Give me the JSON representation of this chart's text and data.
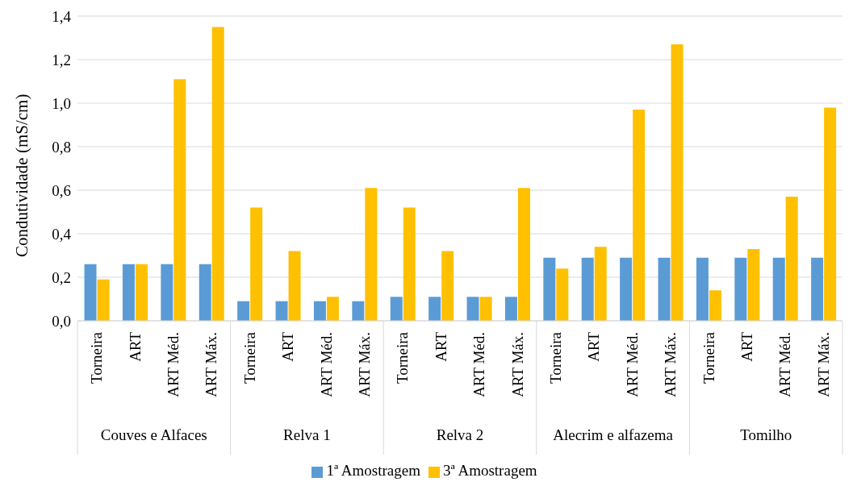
{
  "chart_data": {
    "type": "bar",
    "ylabel": "Condutividade (mS/cm)",
    "categories": [
      "Torneira",
      "ART",
      "ART Méd.",
      "ART Máx.",
      "Torneira",
      "ART",
      "ART Méd.",
      "ART Máx.",
      "Torneira",
      "ART",
      "ART Méd.",
      "ART Máx.",
      "Torneira",
      "ART",
      "ART Méd.",
      "ART Máx.",
      "Torneira",
      "ART",
      "ART Méd.",
      "ART Máx."
    ],
    "annotations": [
      "Couves e Alfaces",
      "Relva 1",
      "Relva 2",
      "Alecrim e alfazema",
      "Tomilho"
    ],
    "series": [
      {
        "name": "1ª Amostragem",
        "color": "#5b9bd5",
        "values": [
          0.26,
          0.26,
          0.26,
          0.26,
          0.09,
          0.09,
          0.09,
          0.09,
          0.11,
          0.11,
          0.11,
          0.11,
          0.29,
          0.29,
          0.29,
          0.29,
          0.29,
          0.29,
          0.29,
          0.29
        ]
      },
      {
        "name": "3ª Amostragem",
        "color": "#ffc000",
        "values": [
          0.19,
          0.26,
          1.11,
          1.35,
          0.52,
          0.32,
          0.11,
          0.61,
          0.52,
          0.32,
          0.11,
          0.61,
          0.24,
          0.34,
          0.97,
          1.27,
          0.14,
          0.33,
          0.57,
          0.98
        ]
      }
    ],
    "ylim": [
      0,
      1.4
    ],
    "yticks": [
      {
        "value": 0,
        "label": "0,0"
      },
      {
        "value": 0.2,
        "label": "0,2"
      },
      {
        "value": 0.4,
        "label": "0,4"
      },
      {
        "value": 0.6,
        "label": "0,6"
      },
      {
        "value": 0.8,
        "label": "0,8"
      },
      {
        "value": 1,
        "label": "1,0"
      },
      {
        "value": 1.2,
        "label": "1,2"
      },
      {
        "value": 1.4,
        "label": "1,4"
      }
    ],
    "grid": "y",
    "legend": "bottom"
  }
}
